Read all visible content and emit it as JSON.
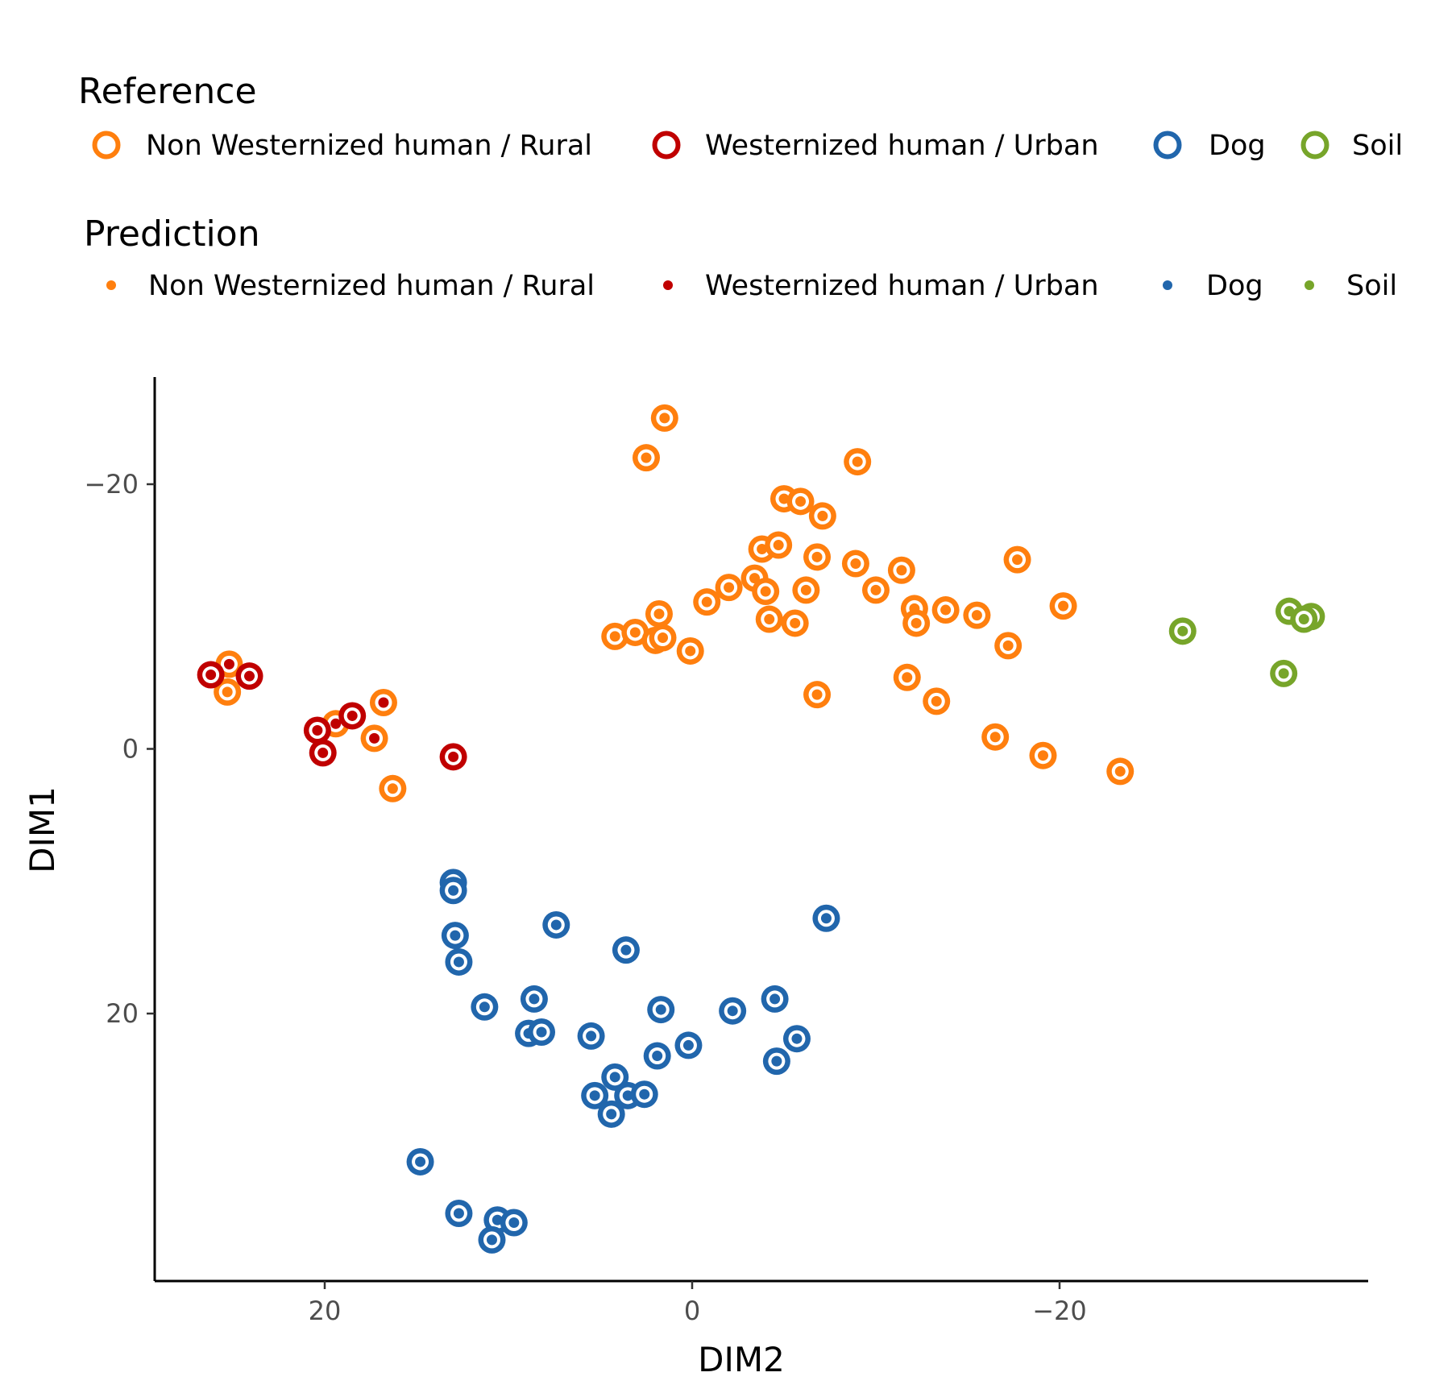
{
  "chart_data": {
    "type": "scatter",
    "xlabel": "DIM2",
    "ylabel": "DIM1",
    "xlim": [
      29.2,
      -36.8
    ],
    "ylim": [
      -28,
      40.5
    ],
    "x_reversed": true,
    "y_reversed": true,
    "xticks": [
      20,
      0,
      -20
    ],
    "xtick_labels": [
      "20",
      "0",
      "−20"
    ],
    "yticks": [
      -20,
      0,
      20
    ],
    "ytick_labels": [
      "−20",
      "0",
      "20"
    ],
    "grid": false,
    "legend_position": "top",
    "legends": [
      {
        "title": "Reference",
        "kind": "ring",
        "entries": [
          {
            "key": "rural",
            "label": "Non Westernized human / Rural"
          },
          {
            "key": "urban",
            "label": "Westernized human / Urban"
          },
          {
            "key": "dog",
            "label": "Dog"
          },
          {
            "key": "soil",
            "label": "Soil"
          }
        ]
      },
      {
        "title": "Prediction",
        "kind": "dot",
        "entries": [
          {
            "key": "rural",
            "label": "Non Westernized human / Rural"
          },
          {
            "key": "urban",
            "label": "Westernized human / Urban"
          },
          {
            "key": "dog",
            "label": "Dog"
          },
          {
            "key": "soil",
            "label": "Soil"
          }
        ]
      }
    ],
    "colors": {
      "rural": "#ff7f0e",
      "urban": "#c00000",
      "dog": "#2166ac",
      "soil": "#77a52a"
    },
    "points": [
      {
        "x": 1.5,
        "y": -25,
        "ref": "rural",
        "pred": "rural"
      },
      {
        "x": 2.5,
        "y": -22,
        "ref": "rural",
        "pred": "rural"
      },
      {
        "x": -9,
        "y": -21.7,
        "ref": "rural",
        "pred": "rural"
      },
      {
        "x": -5,
        "y": -18.9,
        "ref": "rural",
        "pred": "rural"
      },
      {
        "x": -5.9,
        "y": -18.7,
        "ref": "rural",
        "pred": "rural"
      },
      {
        "x": -7.1,
        "y": -17.6,
        "ref": "rural",
        "pred": "rural"
      },
      {
        "x": -3.8,
        "y": -15.1,
        "ref": "rural",
        "pred": "rural"
      },
      {
        "x": -4.7,
        "y": -15.4,
        "ref": "rural",
        "pred": "rural"
      },
      {
        "x": -6.8,
        "y": -14.5,
        "ref": "rural",
        "pred": "rural"
      },
      {
        "x": -17.7,
        "y": -14.3,
        "ref": "rural",
        "pred": "rural"
      },
      {
        "x": -8.9,
        "y": -14,
        "ref": "rural",
        "pred": "rural"
      },
      {
        "x": -11.4,
        "y": -13.5,
        "ref": "rural",
        "pred": "rural"
      },
      {
        "x": -3.4,
        "y": -12.9,
        "ref": "rural",
        "pred": "rural"
      },
      {
        "x": -2,
        "y": -12.2,
        "ref": "rural",
        "pred": "rural"
      },
      {
        "x": -4,
        "y": -11.9,
        "ref": "rural",
        "pred": "rural"
      },
      {
        "x": -6.2,
        "y": -12,
        "ref": "rural",
        "pred": "rural"
      },
      {
        "x": -10,
        "y": -12,
        "ref": "rural",
        "pred": "rural"
      },
      {
        "x": -0.8,
        "y": -11.1,
        "ref": "rural",
        "pred": "rural"
      },
      {
        "x": -12.1,
        "y": -10.6,
        "ref": "rural",
        "pred": "rural"
      },
      {
        "x": -13.8,
        "y": -10.5,
        "ref": "rural",
        "pred": "rural"
      },
      {
        "x": -15.5,
        "y": -10.1,
        "ref": "rural",
        "pred": "rural"
      },
      {
        "x": -20.2,
        "y": -10.8,
        "ref": "rural",
        "pred": "rural"
      },
      {
        "x": 1.8,
        "y": -10.2,
        "ref": "rural",
        "pred": "rural"
      },
      {
        "x": -4.2,
        "y": -9.8,
        "ref": "rural",
        "pred": "rural"
      },
      {
        "x": -5.6,
        "y": -9.5,
        "ref": "rural",
        "pred": "rural"
      },
      {
        "x": -12.2,
        "y": -9.5,
        "ref": "rural",
        "pred": "rural"
      },
      {
        "x": 4.2,
        "y": -8.5,
        "ref": "rural",
        "pred": "rural"
      },
      {
        "x": 3.1,
        "y": -8.8,
        "ref": "rural",
        "pred": "rural"
      },
      {
        "x": 2,
        "y": -8.2,
        "ref": "rural",
        "pred": "rural"
      },
      {
        "x": 1.6,
        "y": -8.4,
        "ref": "rural",
        "pred": "rural"
      },
      {
        "x": 0.1,
        "y": -7.4,
        "ref": "rural",
        "pred": "rural"
      },
      {
        "x": -17.2,
        "y": -7.8,
        "ref": "rural",
        "pred": "rural"
      },
      {
        "x": -11.7,
        "y": -5.4,
        "ref": "rural",
        "pred": "rural"
      },
      {
        "x": -6.8,
        "y": -4.1,
        "ref": "rural",
        "pred": "rural"
      },
      {
        "x": -13.3,
        "y": -3.6,
        "ref": "rural",
        "pred": "rural"
      },
      {
        "x": 25.2,
        "y": -6.4,
        "ref": "rural",
        "pred": "urban"
      },
      {
        "x": 25.3,
        "y": -4.3,
        "ref": "rural",
        "pred": "rural"
      },
      {
        "x": 16.8,
        "y": -3.5,
        "ref": "rural",
        "pred": "urban"
      },
      {
        "x": 19.4,
        "y": -1.9,
        "ref": "rural",
        "pred": "urban"
      },
      {
        "x": 17.3,
        "y": -0.8,
        "ref": "rural",
        "pred": "urban"
      },
      {
        "x": 16.3,
        "y": 3,
        "ref": "rural",
        "pred": "rural"
      },
      {
        "x": -16.5,
        "y": -0.9,
        "ref": "rural",
        "pred": "rural"
      },
      {
        "x": -19.1,
        "y": 0.5,
        "ref": "rural",
        "pred": "rural"
      },
      {
        "x": -23.3,
        "y": 1.7,
        "ref": "rural",
        "pred": "rural"
      },
      {
        "x": 26.2,
        "y": -5.6,
        "ref": "urban",
        "pred": "urban"
      },
      {
        "x": 24.1,
        "y": -5.5,
        "ref": "urban",
        "pred": "urban"
      },
      {
        "x": 18.5,
        "y": -2.5,
        "ref": "urban",
        "pred": "urban"
      },
      {
        "x": 20.4,
        "y": -1.4,
        "ref": "urban",
        "pred": "urban"
      },
      {
        "x": 20.1,
        "y": 0.3,
        "ref": "urban",
        "pred": "urban"
      },
      {
        "x": 13,
        "y": 0.6,
        "ref": "urban",
        "pred": "urban"
      },
      {
        "x": 13,
        "y": 10.1,
        "ref": "dog",
        "pred": "dog"
      },
      {
        "x": 13,
        "y": 10.7,
        "ref": "dog",
        "pred": "dog"
      },
      {
        "x": 7.4,
        "y": 13.3,
        "ref": "dog",
        "pred": "dog"
      },
      {
        "x": -7.3,
        "y": 12.8,
        "ref": "dog",
        "pred": "dog"
      },
      {
        "x": 12.9,
        "y": 14.1,
        "ref": "dog",
        "pred": "dog"
      },
      {
        "x": 3.6,
        "y": 15.2,
        "ref": "dog",
        "pred": "dog"
      },
      {
        "x": 12.7,
        "y": 16.1,
        "ref": "dog",
        "pred": "dog"
      },
      {
        "x": 8.6,
        "y": 18.9,
        "ref": "dog",
        "pred": "dog"
      },
      {
        "x": 11.3,
        "y": 19.5,
        "ref": "dog",
        "pred": "dog"
      },
      {
        "x": -4.5,
        "y": 18.9,
        "ref": "dog",
        "pred": "dog"
      },
      {
        "x": 1.7,
        "y": 19.7,
        "ref": "dog",
        "pred": "dog"
      },
      {
        "x": -2.2,
        "y": 19.8,
        "ref": "dog",
        "pred": "dog"
      },
      {
        "x": 8.9,
        "y": 21.5,
        "ref": "dog",
        "pred": "dog"
      },
      {
        "x": 8.2,
        "y": 21.4,
        "ref": "dog",
        "pred": "dog"
      },
      {
        "x": 5.5,
        "y": 21.7,
        "ref": "dog",
        "pred": "dog"
      },
      {
        "x": -5.7,
        "y": 21.9,
        "ref": "dog",
        "pred": "dog"
      },
      {
        "x": 0.2,
        "y": 22.4,
        "ref": "dog",
        "pred": "dog"
      },
      {
        "x": 1.9,
        "y": 23.2,
        "ref": "dog",
        "pred": "dog"
      },
      {
        "x": -4.6,
        "y": 23.6,
        "ref": "dog",
        "pred": "dog"
      },
      {
        "x": 4.2,
        "y": 24.8,
        "ref": "dog",
        "pred": "dog"
      },
      {
        "x": 5.3,
        "y": 26.2,
        "ref": "dog",
        "pred": "dog"
      },
      {
        "x": 3.5,
        "y": 26.2,
        "ref": "dog",
        "pred": "dog"
      },
      {
        "x": 2.6,
        "y": 26.1,
        "ref": "dog",
        "pred": "dog"
      },
      {
        "x": 4.4,
        "y": 27.6,
        "ref": "dog",
        "pred": "dog"
      },
      {
        "x": 14.8,
        "y": 31.2,
        "ref": "dog",
        "pred": "dog"
      },
      {
        "x": 12.7,
        "y": 35.1,
        "ref": "dog",
        "pred": "dog"
      },
      {
        "x": 10.6,
        "y": 35.6,
        "ref": "dog",
        "pred": "dog"
      },
      {
        "x": 9.7,
        "y": 35.8,
        "ref": "dog",
        "pred": "dog"
      },
      {
        "x": 10.9,
        "y": 37.1,
        "ref": "dog",
        "pred": "dog"
      },
      {
        "x": -26.7,
        "y": -8.9,
        "ref": "soil",
        "pred": "soil"
      },
      {
        "x": -32.5,
        "y": -10.4,
        "ref": "soil",
        "pred": "soil"
      },
      {
        "x": -33.7,
        "y": -10,
        "ref": "soil",
        "pred": "soil"
      },
      {
        "x": -33.3,
        "y": -9.8,
        "ref": "soil",
        "pred": "soil"
      },
      {
        "x": -32.2,
        "y": -5.7,
        "ref": "soil",
        "pred": "soil"
      }
    ]
  }
}
